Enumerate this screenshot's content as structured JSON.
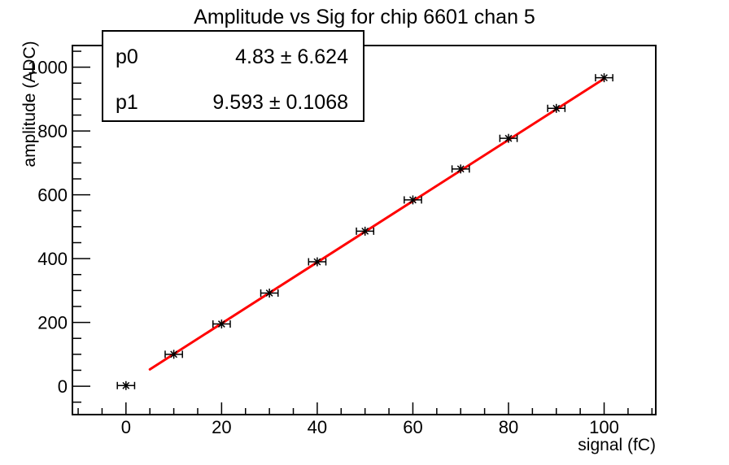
{
  "title": "Amplitude vs Sig for chip 6601 chan 5",
  "stats_box": {
    "rows": [
      {
        "param": "p0",
        "value": "4.83 ± 6.624"
      },
      {
        "param": "p1",
        "value": "9.593 ± 0.1068"
      }
    ]
  },
  "x_axis": {
    "label": "signal (fC)"
  },
  "y_axis": {
    "label": "amplitude (ADC)"
  },
  "colors": {
    "background": "#ffffff",
    "frame": "#000000",
    "marker": "#000000",
    "fit_line": "#ff0000",
    "text": "#000000"
  },
  "chart_data": {
    "type": "scatter",
    "title": "Amplitude vs Sig for chip 6601 chan 5",
    "xlabel": "signal (fC)",
    "ylabel": "amplitude (ADC)",
    "xlim": [
      -11.2,
      110.8
    ],
    "ylim": [
      -89,
      1068
    ],
    "x": [
      0,
      10,
      20,
      30,
      40,
      50,
      60,
      70,
      80,
      90,
      100
    ],
    "y": [
      2,
      100,
      195,
      292,
      390,
      486,
      584,
      681,
      777,
      871,
      967
    ],
    "x_error": 1.5,
    "x_major_ticks": [
      0,
      20,
      40,
      60,
      80,
      100
    ],
    "x_minor_step": 5,
    "y_major_ticks": [
      0,
      200,
      400,
      600,
      800,
      1000
    ],
    "y_minor_step": 50,
    "marker_style": "asterisk-with-x-error-bars",
    "grid": false,
    "legend_position": "none",
    "fit": {
      "type": "linear",
      "p0": 4.83,
      "p0_err": 6.624,
      "p1": 9.593,
      "p1_err": 0.1068,
      "x_range": [
        5,
        100
      ],
      "color": "#ff0000",
      "line_width": 3
    }
  }
}
